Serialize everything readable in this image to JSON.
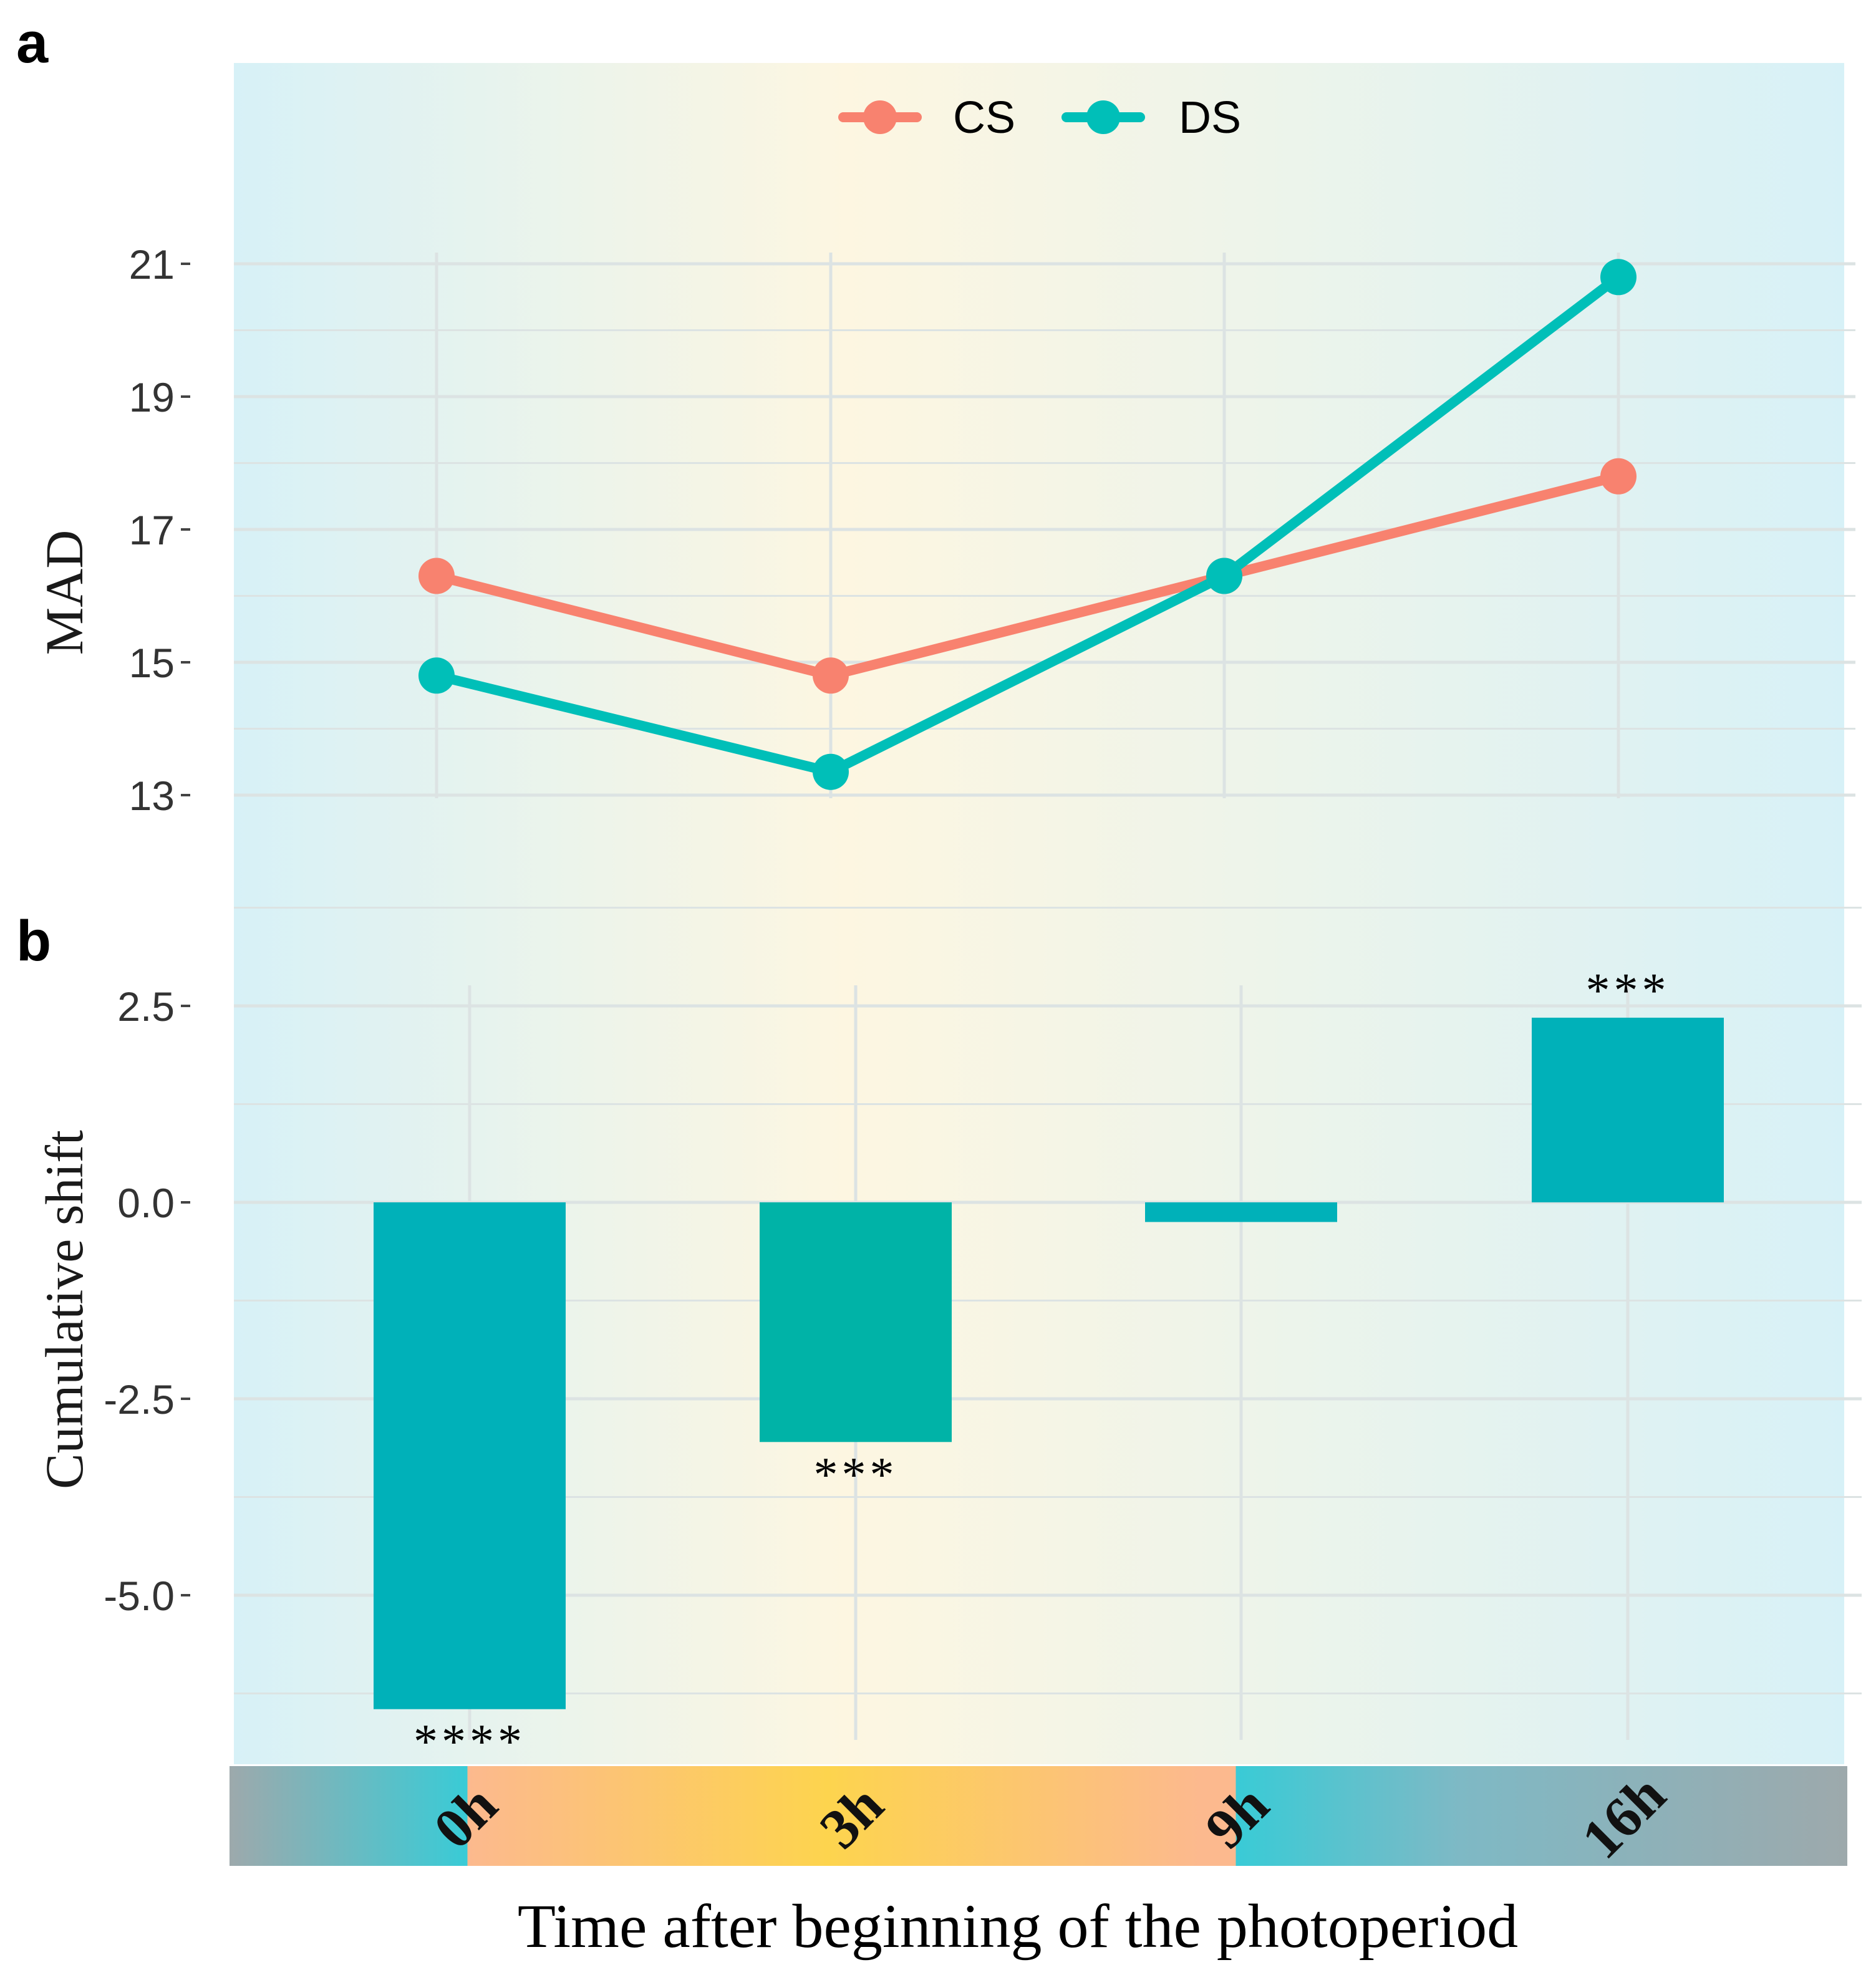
{
  "figure": {
    "xlabel": "Time after beginning of the photoperiod",
    "time_labels": [
      "0h",
      "3h",
      "9h",
      "16h"
    ],
    "colors": {
      "cs": "#F8826F",
      "ds": "#00BFB8",
      "bar": "#00B1B9",
      "bar_alt": "#00B3A7",
      "panel_blue": "#D7F1F7",
      "panel_cream": "#FDF6E1",
      "grid": "#DCE3E3",
      "strip_gray": "#9DA9AC",
      "strip_teal": "#39CBD6",
      "strip_peach": "#FCB98E",
      "strip_yellow": "#FDD44E"
    }
  },
  "chart_data": [
    {
      "panel": "a",
      "type": "line",
      "title": "",
      "xlabel": "",
      "ylabel": "MAD",
      "categories": [
        "0h",
        "3h",
        "9h",
        "16h"
      ],
      "series": [
        {
          "name": "CS",
          "color": "#F8826F",
          "values": [
            16.3,
            14.8,
            16.3,
            17.8
          ]
        },
        {
          "name": "DS",
          "color": "#00BFB8",
          "values": [
            14.8,
            13.35,
            16.3,
            20.8
          ]
        }
      ],
      "yticks": [
        13,
        15,
        17,
        19,
        21
      ],
      "ylim": [
        12.75,
        21.8
      ],
      "legend": "top-center",
      "grid": true
    },
    {
      "panel": "b",
      "type": "bar",
      "title": "",
      "xlabel": "Time after beginning of the photoperiod",
      "ylabel": "Cumulative shift",
      "categories": [
        "0h",
        "3h",
        "9h",
        "16h"
      ],
      "values": [
        -6.45,
        -3.05,
        -0.25,
        2.35
      ],
      "annotations": [
        "****",
        "***",
        "",
        "***"
      ],
      "yticks": [
        -5.0,
        -2.5,
        0.0,
        2.5
      ],
      "ytick_labels": [
        "-5.0",
        "-2.5",
        "0.0",
        "2.5"
      ],
      "ylim": [
        -6.9,
        2.7
      ],
      "grid": true
    }
  ]
}
